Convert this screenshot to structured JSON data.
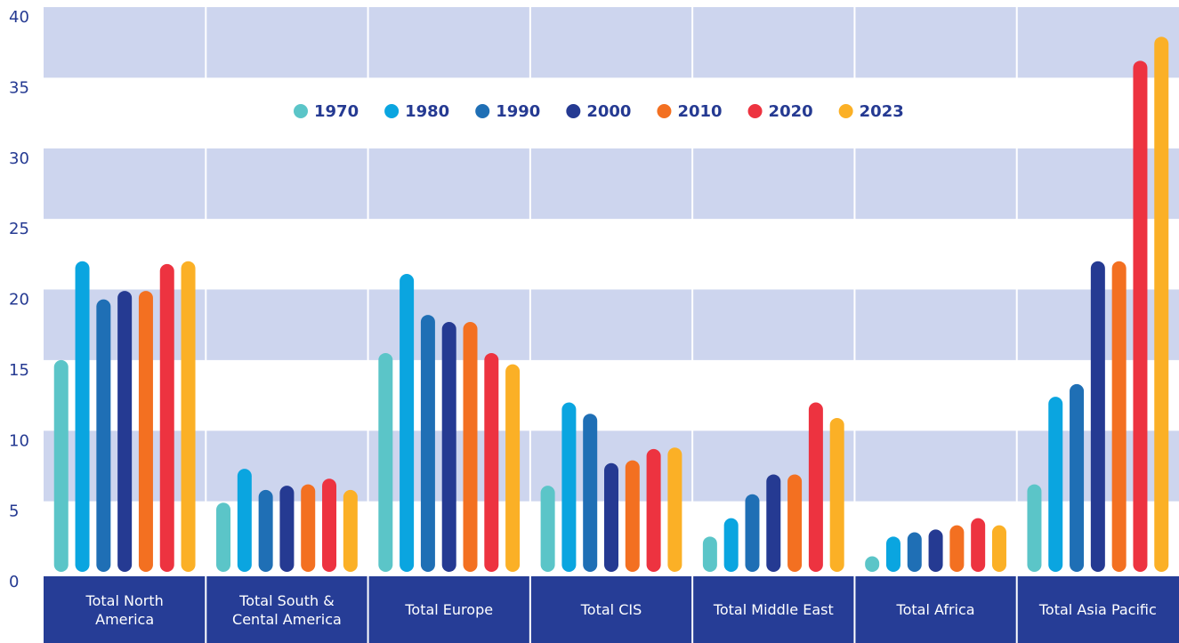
{
  "chart_data": {
    "type": "bar",
    "categories": [
      "Total North\nAmerica",
      "Total South &\nCental America",
      "Total Europe",
      "Total CIS",
      "Total Middle East",
      "Total Africa",
      "Total Asia Pacific"
    ],
    "series": [
      {
        "name": "1970",
        "color": "#5bc5c8",
        "values": [
          15.0,
          4.9,
          15.5,
          6.1,
          2.5,
          1.1,
          6.2
        ]
      },
      {
        "name": "1980",
        "color": "#0aa5e0",
        "values": [
          22.0,
          7.3,
          21.1,
          12.0,
          3.8,
          2.5,
          12.4
        ]
      },
      {
        "name": "1990",
        "color": "#1f6fb5",
        "values": [
          19.3,
          5.8,
          18.2,
          11.2,
          5.5,
          2.8,
          13.3
        ]
      },
      {
        "name": "2000",
        "color": "#253a92",
        "values": [
          19.9,
          6.1,
          17.7,
          7.7,
          6.9,
          3.0,
          22.0
        ]
      },
      {
        "name": "2010",
        "color": "#f37021",
        "values": [
          19.9,
          6.2,
          17.7,
          7.9,
          6.9,
          3.3,
          22.0
        ]
      },
      {
        "name": "2020",
        "color": "#ed3340",
        "values": [
          21.8,
          6.6,
          15.5,
          8.7,
          12.0,
          3.8,
          36.2
        ]
      },
      {
        "name": "2023",
        "color": "#fbb026",
        "values": [
          22.0,
          5.8,
          14.7,
          8.8,
          10.9,
          3.3,
          37.9
        ]
      }
    ],
    "ylim": [
      0,
      40
    ],
    "yticks": [
      0,
      5,
      10,
      15,
      20,
      25,
      30,
      35,
      40
    ],
    "grid": true,
    "legend": "top"
  }
}
